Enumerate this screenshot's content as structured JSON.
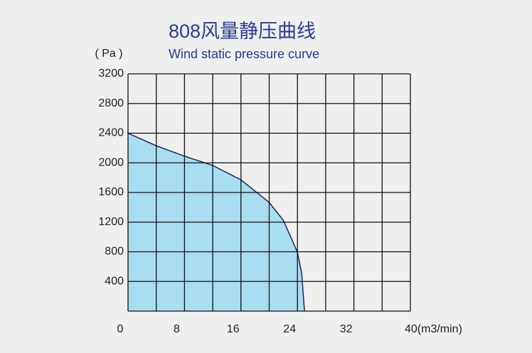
{
  "chart_data": {
    "type": "area",
    "title": "808风量静压曲线",
    "subtitle": "Wind static pressure curve",
    "y_label": "( Pa )",
    "x": [
      0,
      4,
      8,
      12,
      16,
      20,
      22,
      24,
      24.6,
      25
    ],
    "series": [
      {
        "name": "Wind static pressure curve",
        "color": "#aadcf2",
        "values": [
          2400,
          2230,
          2090,
          1965,
          1770,
          1465,
          1225,
          795,
          510,
          0
        ]
      }
    ],
    "xlim": [
      0,
      40
    ],
    "xticks": [
      0,
      8,
      16,
      24,
      32,
      {
        "value": 40,
        "label": "40(m3/min)"
      }
    ],
    "xgrid": [
      0,
      4,
      8,
      12,
      16,
      20,
      24,
      28,
      32,
      36,
      40
    ],
    "ylim": [
      0,
      3200
    ],
    "yticks": [
      400,
      800,
      1200,
      1600,
      2000,
      2400,
      2800,
      3200
    ],
    "grid": true
  }
}
